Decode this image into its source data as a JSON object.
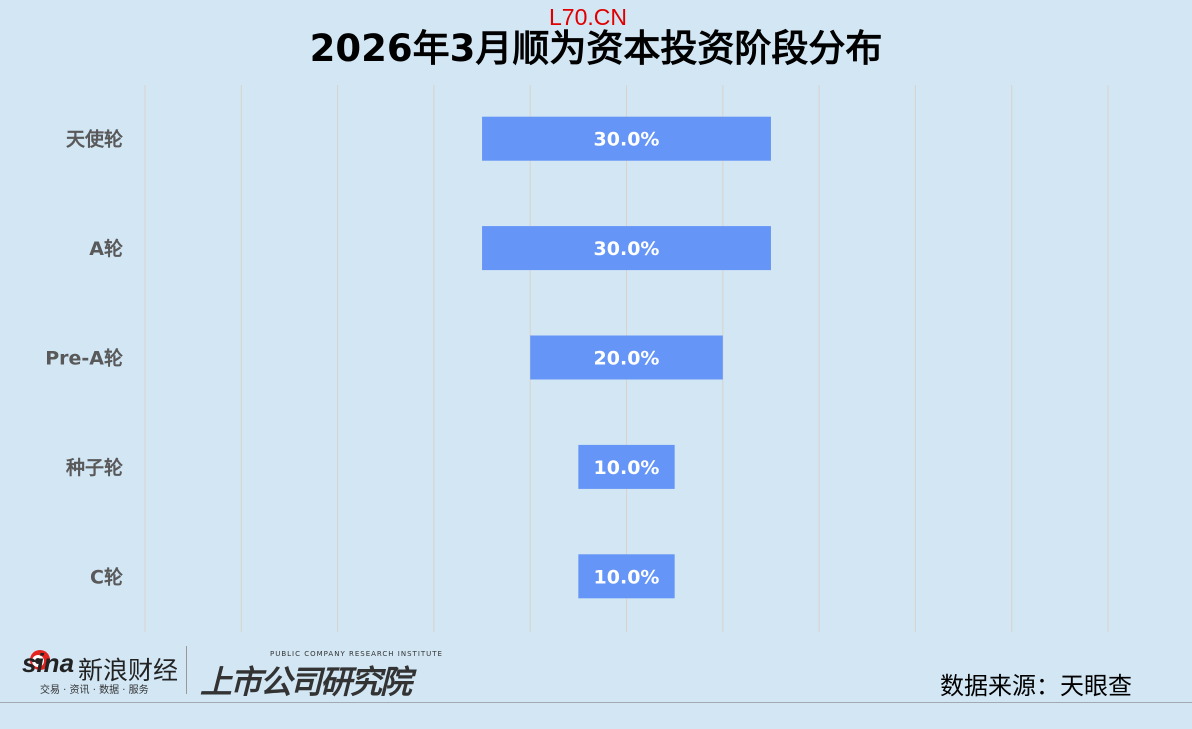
{
  "watermark": "L70.CN",
  "chart_data": {
    "type": "bar",
    "orientation": "horizontal-centered",
    "title": "2026年3月顺为资本投资阶段分布",
    "categories": [
      "天使轮",
      "A轮",
      "Pre-A轮",
      "种子轮",
      "C轮"
    ],
    "values": [
      30.0,
      30.0,
      20.0,
      10.0,
      10.0
    ],
    "data_labels": [
      "30.0%",
      "30.0%",
      "20.0%",
      "10.0%",
      "10.0%"
    ],
    "unit": "%",
    "grid": true,
    "legend": "none",
    "bar_color": "#6495f7"
  },
  "footer": {
    "sina_logo": "sina",
    "sina_name": "新浪财经",
    "sina_tagline": "交易 · 资讯 · 数据 · 服务",
    "institute_en": "PUBLIC COMPANY RESEARCH INSTITUTE",
    "institute_cn": "上市公司研究院",
    "source": "数据来源：天眼查"
  }
}
